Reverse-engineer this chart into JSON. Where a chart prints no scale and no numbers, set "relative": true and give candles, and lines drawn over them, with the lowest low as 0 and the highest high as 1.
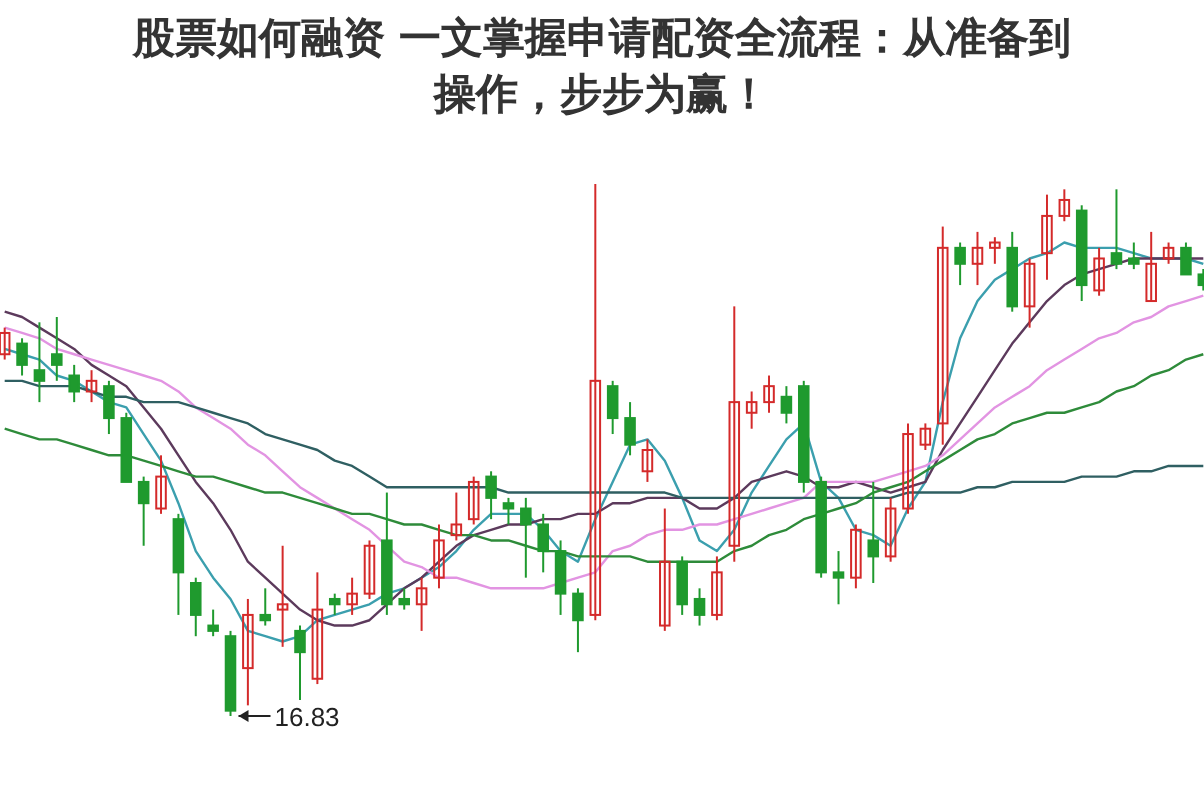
{
  "chart_data": {
    "type": "candlestick",
    "title": "股票如何融资 一文掌握申请配资全流程：从准备到操作，步步为赢！",
    "relative": true,
    "tick_labels": false,
    "categories": [
      null,
      null,
      null,
      null,
      null,
      null,
      null,
      null,
      null,
      null,
      null,
      null,
      null,
      null,
      null,
      null,
      null,
      null,
      null,
      null,
      null,
      null,
      null,
      null,
      null,
      null,
      null,
      null,
      null,
      null,
      null,
      null,
      null,
      null,
      null,
      null,
      null,
      null,
      null,
      null,
      null,
      null,
      null,
      null,
      null,
      null,
      null,
      null,
      null,
      null,
      null,
      null,
      null,
      null,
      null,
      null,
      null,
      null,
      null,
      null,
      null,
      null,
      null,
      null,
      null,
      null,
      null,
      null,
      null,
      null
    ],
    "ohlc": [
      [
        0.68,
        0.73,
        0.67,
        0.72
      ],
      [
        0.7,
        0.71,
        0.64,
        0.66
      ],
      [
        0.65,
        0.74,
        0.59,
        0.63
      ],
      [
        0.68,
        0.75,
        0.63,
        0.66
      ],
      [
        0.64,
        0.66,
        0.59,
        0.61
      ],
      [
        0.61,
        0.65,
        0.59,
        0.63
      ],
      [
        0.62,
        0.63,
        0.53,
        0.56
      ],
      [
        0.56,
        0.57,
        0.44,
        0.44
      ],
      [
        0.44,
        0.45,
        0.32,
        0.4
      ],
      [
        0.39,
        0.49,
        0.38,
        0.45
      ],
      [
        0.37,
        0.38,
        0.19,
        0.27
      ],
      [
        0.25,
        0.26,
        0.15,
        0.19
      ],
      [
        0.17,
        0.2,
        0.15,
        0.16
      ],
      [
        0.15,
        0.16,
        0,
        0.01
      ],
      [
        0.09,
        0.22,
        0.02,
        0.19
      ],
      [
        0.19,
        0.24,
        0.17,
        0.18
      ],
      [
        0.2,
        0.32,
        0.13,
        0.21
      ],
      [
        0.16,
        0.17,
        0.03,
        0.12
      ],
      [
        0.07,
        0.27,
        0.06,
        0.2
      ],
      [
        0.22,
        0.23,
        0.19,
        0.21
      ],
      [
        0.21,
        0.26,
        0.19,
        0.23
      ],
      [
        0.23,
        0.33,
        0.22,
        0.32
      ],
      [
        0.33,
        0.42,
        0.19,
        0.21
      ],
      [
        0.22,
        0.24,
        0.2,
        0.21
      ],
      [
        0.21,
        0.26,
        0.16,
        0.24
      ],
      [
        0.26,
        0.36,
        0.24,
        0.33
      ],
      [
        0.34,
        0.42,
        0.33,
        0.36
      ],
      [
        0.37,
        0.45,
        0.36,
        0.44
      ],
      [
        0.45,
        0.46,
        0.37,
        0.41
      ],
      [
        0.4,
        0.41,
        0.36,
        0.39
      ],
      [
        0.39,
        0.41,
        0.26,
        0.36
      ],
      [
        0.36,
        0.38,
        0.27,
        0.31
      ],
      [
        0.31,
        0.33,
        0.19,
        0.23
      ],
      [
        0.23,
        0.24,
        0.12,
        0.18
      ],
      [
        0.19,
        1,
        0.18,
        0.63
      ],
      [
        0.62,
        0.63,
        0.53,
        0.56
      ],
      [
        0.56,
        0.59,
        0.49,
        0.51
      ],
      [
        0.46,
        0.52,
        0.44,
        0.5
      ],
      [
        0.17,
        0.39,
        0.16,
        0.29
      ],
      [
        0.29,
        0.3,
        0.19,
        0.21
      ],
      [
        0.22,
        0.24,
        0.17,
        0.19
      ],
      [
        0.19,
        0.3,
        0.18,
        0.27
      ],
      [
        0.32,
        0.77,
        0.29,
        0.59
      ],
      [
        0.57,
        0.61,
        0.54,
        0.59
      ],
      [
        0.59,
        0.64,
        0.57,
        0.62
      ],
      [
        0.6,
        0.62,
        0.55,
        0.57
      ],
      [
        0.62,
        0.63,
        0.42,
        0.44
      ],
      [
        0.44,
        0.45,
        0.26,
        0.27
      ],
      [
        0.27,
        0.31,
        0.21,
        0.26
      ],
      [
        0.26,
        0.36,
        0.24,
        0.35
      ],
      [
        0.33,
        0.44,
        0.25,
        0.3
      ],
      [
        0.3,
        0.41,
        0.29,
        0.39
      ],
      [
        0.39,
        0.55,
        0.38,
        0.53
      ],
      [
        0.51,
        0.55,
        0.5,
        0.54
      ],
      [
        0.55,
        0.92,
        0.51,
        0.88
      ],
      [
        0.88,
        0.89,
        0.81,
        0.85
      ],
      [
        0.85,
        0.91,
        0.81,
        0.88
      ],
      [
        0.88,
        0.9,
        0.85,
        0.89
      ],
      [
        0.88,
        0.91,
        0.76,
        0.77
      ],
      [
        0.77,
        0.86,
        0.73,
        0.85
      ],
      [
        0.87,
        0.98,
        0.82,
        0.94
      ],
      [
        0.94,
        0.99,
        0.93,
        0.97
      ],
      [
        0.95,
        0.96,
        0.78,
        0.81
      ],
      [
        0.8,
        0.88,
        0.79,
        0.86
      ],
      [
        0.87,
        0.99,
        0.84,
        0.85
      ],
      [
        0.86,
        0.89,
        0.84,
        0.85
      ],
      [
        0.78,
        0.91,
        0.78,
        0.85
      ],
      [
        0.86,
        0.89,
        0.85,
        0.88
      ],
      [
        0.88,
        0.89,
        0.83,
        0.83
      ],
      [
        0.83,
        0.84,
        0.8,
        0.81
      ]
    ],
    "colors": [
      "#d42a2a",
      "#1f9a2e",
      "#1f9a2e",
      "#1f9a2e",
      "#1f9a2e",
      "#d42a2a",
      "#1f9a2e",
      "#1f9a2e",
      "#1f9a2e",
      "#d42a2a",
      "#1f9a2e",
      "#1f9a2e",
      "#1f9a2e",
      "#1f9a2e",
      "#d42a2a",
      "#1f9a2e",
      "#d42a2a",
      "#1f9a2e",
      "#d42a2a",
      "#1f9a2e",
      "#d42a2a",
      "#d42a2a",
      "#1f9a2e",
      "#1f9a2e",
      "#d42a2a",
      "#d42a2a",
      "#d42a2a",
      "#d42a2a",
      "#1f9a2e",
      "#1f9a2e",
      "#1f9a2e",
      "#1f9a2e",
      "#1f9a2e",
      "#1f9a2e",
      "#d42a2a",
      "#1f9a2e",
      "#1f9a2e",
      "#d42a2a",
      "#d42a2a",
      "#1f9a2e",
      "#1f9a2e",
      "#d42a2a",
      "#d42a2a",
      "#d42a2a",
      "#d42a2a",
      "#1f9a2e",
      "#1f9a2e",
      "#1f9a2e",
      "#1f9a2e",
      "#d42a2a",
      "#1f9a2e",
      "#d42a2a",
      "#d42a2a",
      "#d42a2a",
      "#d42a2a",
      "#1f9a2e",
      "#d42a2a",
      "#d42a2a",
      "#1f9a2e",
      "#d42a2a",
      "#d42a2a",
      "#d42a2a",
      "#1f9a2e",
      "#d42a2a",
      "#1f9a2e",
      "#1f9a2e",
      "#d42a2a",
      "#d42a2a",
      "#1f9a2e",
      "#1f9a2e"
    ],
    "series": [
      {
        "type": "line",
        "color": "#3b9fae",
        "values": [
          0.69,
          0.68,
          0.67,
          0.64,
          0.63,
          0.61,
          0.59,
          0.58,
          0.53,
          0.48,
          0.4,
          0.31,
          0.26,
          0.22,
          0.16,
          0.15,
          0.14,
          0.15,
          0.18,
          0.19,
          0.2,
          0.21,
          0.23,
          0.24,
          0.26,
          0.28,
          0.31,
          0.35,
          0.38,
          0.38,
          0.38,
          0.35,
          0.31,
          0.29,
          0.37,
          0.44,
          0.51,
          0.52,
          0.48,
          0.41,
          0.33,
          0.31,
          0.35,
          0.42,
          0.47,
          0.52,
          0.55,
          0.44,
          0.41,
          0.35,
          0.34,
          0.32,
          0.39,
          0.44,
          0.59,
          0.71,
          0.78,
          0.82,
          0.84,
          0.86,
          0.87,
          0.89,
          0.88,
          0.88,
          0.88,
          0.87,
          0.86,
          0.86,
          0.86,
          0.85
        ]
      },
      {
        "type": "line",
        "color": "#5c3a5c",
        "values": [
          0.76,
          0.75,
          0.73,
          0.71,
          0.69,
          0.66,
          0.64,
          0.62,
          0.58,
          0.54,
          0.49,
          0.44,
          0.4,
          0.35,
          0.29,
          0.26,
          0.23,
          0.2,
          0.18,
          0.17,
          0.17,
          0.18,
          0.21,
          0.24,
          0.26,
          0.29,
          0.32,
          0.34,
          0.35,
          0.36,
          0.36,
          0.37,
          0.37,
          0.38,
          0.38,
          0.4,
          0.4,
          0.41,
          0.41,
          0.41,
          0.39,
          0.39,
          0.41,
          0.44,
          0.45,
          0.46,
          0.45,
          0.43,
          0.43,
          0.44,
          0.43,
          0.42,
          0.43,
          0.44,
          0.5,
          0.55,
          0.6,
          0.65,
          0.7,
          0.74,
          0.78,
          0.81,
          0.83,
          0.84,
          0.85,
          0.86,
          0.86,
          0.86,
          0.86,
          0.86
        ]
      },
      {
        "type": "line",
        "color": "#e294e2",
        "values": [
          0.73,
          0.72,
          0.71,
          0.69,
          0.68,
          0.67,
          0.66,
          0.65,
          0.64,
          0.63,
          0.61,
          0.58,
          0.56,
          0.54,
          0.51,
          0.49,
          0.46,
          0.43,
          0.41,
          0.39,
          0.37,
          0.35,
          0.32,
          0.29,
          0.28,
          0.26,
          0.26,
          0.25,
          0.24,
          0.24,
          0.24,
          0.24,
          0.25,
          0.26,
          0.27,
          0.31,
          0.32,
          0.34,
          0.35,
          0.35,
          0.36,
          0.36,
          0.37,
          0.38,
          0.39,
          0.4,
          0.41,
          0.44,
          0.44,
          0.44,
          0.44,
          0.45,
          0.46,
          0.47,
          0.49,
          0.52,
          0.55,
          0.58,
          0.6,
          0.62,
          0.65,
          0.67,
          0.69,
          0.71,
          0.72,
          0.74,
          0.75,
          0.77,
          0.78,
          0.79
        ]
      },
      {
        "type": "line",
        "color": "#2f5f62",
        "values": [
          0.63,
          0.63,
          0.62,
          0.62,
          0.62,
          0.61,
          0.6,
          0.6,
          0.59,
          0.59,
          0.59,
          0.58,
          0.57,
          0.56,
          0.55,
          0.53,
          0.52,
          0.51,
          0.5,
          0.48,
          0.47,
          0.45,
          0.43,
          0.43,
          0.43,
          0.43,
          0.43,
          0.43,
          0.43,
          0.42,
          0.42,
          0.42,
          0.42,
          0.42,
          0.42,
          0.42,
          0.42,
          0.42,
          0.42,
          0.41,
          0.41,
          0.41,
          0.41,
          0.41,
          0.41,
          0.41,
          0.41,
          0.41,
          0.41,
          0.41,
          0.41,
          0.41,
          0.42,
          0.42,
          0.42,
          0.42,
          0.43,
          0.43,
          0.44,
          0.44,
          0.44,
          0.44,
          0.45,
          0.45,
          0.45,
          0.46,
          0.46,
          0.47,
          0.47,
          0.47
        ]
      },
      {
        "type": "line",
        "color": "#2e8b3a",
        "values": [
          0.54,
          0.53,
          0.52,
          0.52,
          0.51,
          0.5,
          0.49,
          0.49,
          0.48,
          0.47,
          0.46,
          0.45,
          0.45,
          0.44,
          0.43,
          0.42,
          0.42,
          0.41,
          0.4,
          0.39,
          0.38,
          0.38,
          0.37,
          0.36,
          0.36,
          0.35,
          0.34,
          0.34,
          0.33,
          0.33,
          0.32,
          0.31,
          0.31,
          0.3,
          0.3,
          0.3,
          0.3,
          0.29,
          0.29,
          0.29,
          0.29,
          0.29,
          0.31,
          0.32,
          0.34,
          0.35,
          0.37,
          0.38,
          0.39,
          0.4,
          0.42,
          0.43,
          0.44,
          0.46,
          0.48,
          0.5,
          0.52,
          0.53,
          0.55,
          0.56,
          0.57,
          0.57,
          0.58,
          0.59,
          0.61,
          0.62,
          0.64,
          0.65,
          0.67,
          0.68
        ]
      }
    ],
    "annotations": [
      "16.83"
    ]
  }
}
